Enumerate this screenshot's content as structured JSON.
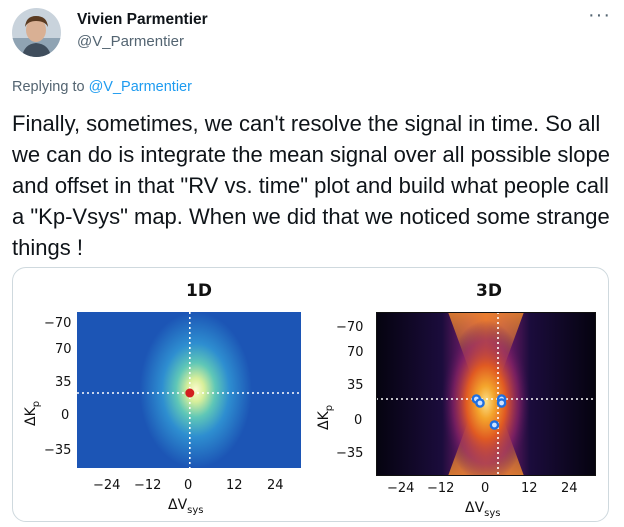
{
  "author": {
    "name": "Vivien Parmentier",
    "handle": "@V_Parmentier"
  },
  "more_icon": "more-horizontal-icon",
  "reply": {
    "prefix": "Replying to",
    "handle": "@V_Parmentier"
  },
  "tweet": {
    "text": "Finally, sometimes, we can't resolve the signal in time. So all we can do is integrate the mean signal over all possible slope and offset in that \"RV vs. time\" plot and build what people call a \"Kp-Vsys\" map. When we did that we noticed some strange things !"
  },
  "colors": {
    "link": "#1d9bf0",
    "handle": "#536471",
    "text": "#0f1419",
    "border": "#cfd9de"
  },
  "chart_data": [
    {
      "type": "heatmap",
      "title": "1D",
      "xlabel": "ΔV",
      "xlabel_sub": "sys",
      "ylabel": "ΔK",
      "ylabel_sub": "p",
      "x_ticks": [
        "−24",
        "−12",
        "0",
        "12",
        "24"
      ],
      "y_ticks": [
        "−70",
        "70",
        "35",
        "0",
        "−35"
      ],
      "colormap": "viridis-like (blue to yellow)",
      "markers": [
        {
          "x": -2,
          "y": 22,
          "color": "#d21f1f"
        }
      ],
      "crosshair": {
        "x": -2,
        "y": 22
      }
    },
    {
      "type": "heatmap",
      "title": "3D",
      "xlabel": "ΔV",
      "xlabel_sub": "sys",
      "ylabel": "ΔK",
      "ylabel_sub": "p",
      "x_ticks": [
        "−24",
        "−12",
        "0",
        "12",
        "24"
      ],
      "y_ticks": [
        "−70",
        "70",
        "35",
        "0",
        "−35"
      ],
      "colormap": "inferno-like (black to yellow)",
      "markers": [
        {
          "x": -6,
          "y": 18,
          "color": "#1f6fe0"
        },
        {
          "x": -5,
          "y": 14,
          "color": "#1f6fe0"
        },
        {
          "x": 1,
          "y": 18,
          "color": "#1f6fe0"
        },
        {
          "x": 1,
          "y": 14,
          "color": "#1f6fe0"
        },
        {
          "x": -1,
          "y": -8,
          "color": "#1f6fe0"
        }
      ],
      "crosshair": {
        "x": 0,
        "y": 18
      }
    }
  ]
}
